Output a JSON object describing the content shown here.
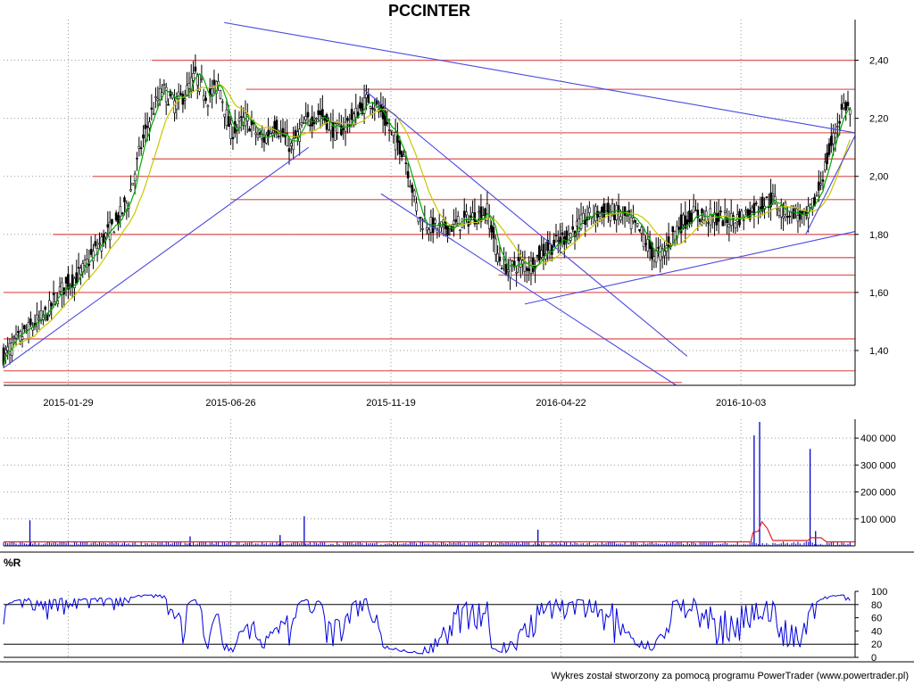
{
  "title": "PCCINTER",
  "footer": "Wykres został stworzony za pomocą programu PowerTrader (www.powertrader.pl)",
  "colors": {
    "background": "#ffffff",
    "candle": "#000000",
    "ma_short": "#00aa00",
    "ma_long": "#c8c800",
    "support_resistance": "#e06060",
    "trendline": "#4a4ae0",
    "volume": "#0000cc",
    "volume_avg": "#e02020",
    "williams_r": "#0000dd"
  },
  "chart_data": [
    {
      "type": "candlestick",
      "name": "price",
      "title": "PCCINTER",
      "x_ticks": [
        "2015-01-29",
        "2015-06-26",
        "2015-11-19",
        "2016-04-22",
        "2016-10-03"
      ],
      "y_ticks": [
        "1,40",
        "1,60",
        "1,80",
        "2,00",
        "2,20",
        "2,40"
      ],
      "ylim": [
        1.28,
        2.54
      ],
      "grid": true,
      "price_path": [
        [
          "2014-12-01",
          1.38
        ],
        [
          "2014-12-10",
          1.42
        ],
        [
          "2014-12-20",
          1.46
        ],
        [
          "2015-01-01",
          1.5
        ],
        [
          "2015-01-10",
          1.53
        ],
        [
          "2015-01-20",
          1.6
        ],
        [
          "2015-01-29",
          1.63
        ],
        [
          "2015-02-10",
          1.67
        ],
        [
          "2015-02-20",
          1.73
        ],
        [
          "2015-03-01",
          1.78
        ],
        [
          "2015-03-15",
          1.85
        ],
        [
          "2015-03-25",
          1.92
        ],
        [
          "2015-04-05",
          2.1
        ],
        [
          "2015-04-15",
          2.22
        ],
        [
          "2015-04-25",
          2.3
        ],
        [
          "2015-05-05",
          2.25
        ],
        [
          "2015-05-15",
          2.28
        ],
        [
          "2015-05-25",
          2.35
        ],
        [
          "2015-06-05",
          2.27
        ],
        [
          "2015-06-15",
          2.32
        ],
        [
          "2015-06-26",
          2.15
        ],
        [
          "2015-07-10",
          2.2
        ],
        [
          "2015-07-25",
          2.12
        ],
        [
          "2015-08-05",
          2.18
        ],
        [
          "2015-08-20",
          2.1
        ],
        [
          "2015-09-01",
          2.18
        ],
        [
          "2015-09-15",
          2.22
        ],
        [
          "2015-09-30",
          2.15
        ],
        [
          "2015-10-15",
          2.2
        ],
        [
          "2015-10-30",
          2.27
        ],
        [
          "2015-11-10",
          2.22
        ],
        [
          "2015-11-19",
          2.15
        ],
        [
          "2015-12-01",
          2.08
        ],
        [
          "2015-12-15",
          1.85
        ],
        [
          "2016-01-01",
          1.82
        ],
        [
          "2016-01-15",
          1.83
        ],
        [
          "2016-02-01",
          1.86
        ],
        [
          "2016-02-15",
          1.88
        ],
        [
          "2016-02-25",
          1.72
        ],
        [
          "2016-03-05",
          1.68
        ],
        [
          "2016-03-15",
          1.7
        ],
        [
          "2016-03-25",
          1.69
        ],
        [
          "2016-04-05",
          1.74
        ],
        [
          "2016-04-22",
          1.78
        ],
        [
          "2016-05-05",
          1.82
        ],
        [
          "2016-05-20",
          1.87
        ],
        [
          "2016-06-05",
          1.88
        ],
        [
          "2016-06-20",
          1.86
        ],
        [
          "2016-07-05",
          1.8
        ],
        [
          "2016-07-15",
          1.73
        ],
        [
          "2016-07-25",
          1.74
        ],
        [
          "2016-08-05",
          1.82
        ],
        [
          "2016-08-20",
          1.87
        ],
        [
          "2016-09-05",
          1.86
        ],
        [
          "2016-09-20",
          1.85
        ],
        [
          "2016-10-03",
          1.86
        ],
        [
          "2016-10-20",
          1.9
        ],
        [
          "2016-11-01",
          1.92
        ],
        [
          "2016-11-10",
          1.88
        ],
        [
          "2016-11-20",
          1.88
        ],
        [
          "2016-12-01",
          1.85
        ],
        [
          "2016-12-10",
          1.92
        ],
        [
          "2016-12-20",
          2.05
        ],
        [
          "2016-12-30",
          2.18
        ],
        [
          "2017-01-05",
          2.25
        ],
        [
          "2017-01-12",
          2.22
        ]
      ],
      "horizontal_levels": [
        {
          "y": 2.4,
          "from": "2015-04-15",
          "to": "2017-01-15"
        },
        {
          "y": 2.3,
          "from": "2015-07-10",
          "to": "2017-01-15"
        },
        {
          "y": 2.15,
          "from": "2015-08-01",
          "to": "2017-01-15"
        },
        {
          "y": 2.06,
          "from": "2015-04-15",
          "to": "2017-01-15"
        },
        {
          "y": 2.0,
          "from": "2015-02-20",
          "to": "2017-01-15"
        },
        {
          "y": 1.92,
          "from": "2015-06-26",
          "to": "2017-01-15"
        },
        {
          "y": 1.8,
          "from": "2015-01-15",
          "to": "2017-01-15"
        },
        {
          "y": 1.72,
          "from": "2016-03-05",
          "to": "2017-01-15"
        },
        {
          "y": 1.66,
          "from": "2016-02-25",
          "to": "2017-01-15"
        },
        {
          "y": 1.6,
          "from": "2014-12-01",
          "to": "2017-01-15"
        },
        {
          "y": 1.44,
          "from": "2014-12-01",
          "to": "2017-01-15"
        },
        {
          "y": 1.33,
          "from": "2014-12-01",
          "to": "2017-01-15"
        },
        {
          "y": 1.29,
          "from": "2014-12-01",
          "to": "2016-08-10"
        }
      ],
      "trendlines": [
        {
          "x1": "2014-12-01",
          "y1": 1.34,
          "x2": "2015-09-05",
          "y2": 2.1
        },
        {
          "x1": "2015-06-20",
          "y1": 2.53,
          "x2": "2017-01-15",
          "y2": 2.15
        },
        {
          "x1": "2015-10-25",
          "y1": 2.3,
          "x2": "2016-08-15",
          "y2": 1.38
        },
        {
          "x1": "2015-11-10",
          "y1": 1.94,
          "x2": "2016-08-05",
          "y2": 1.28
        },
        {
          "x1": "2016-03-20",
          "y1": 1.56,
          "x2": "2017-01-15",
          "y2": 1.81
        },
        {
          "x1": "2016-12-01",
          "y1": 1.8,
          "x2": "2017-01-15",
          "y2": 2.14
        }
      ]
    },
    {
      "type": "bar",
      "name": "volume",
      "y_ticks": [
        "100 000",
        "200 000",
        "300 000",
        "400 000"
      ],
      "ylim": [
        0,
        470000
      ],
      "spikes": [
        [
          "2014-12-25",
          95000
        ],
        [
          "2015-05-20",
          35000
        ],
        [
          "2015-08-10",
          40000
        ],
        [
          "2015-09-01",
          110000
        ],
        [
          "2016-04-01",
          60000
        ],
        [
          "2016-10-15",
          410000
        ],
        [
          "2016-10-20",
          460000
        ],
        [
          "2016-12-05",
          360000
        ],
        [
          "2016-12-10",
          55000
        ]
      ],
      "avg_line": [
        [
          "2014-12-01",
          15000
        ],
        [
          "2016-10-12",
          15000
        ],
        [
          "2016-10-14",
          50000
        ],
        [
          "2016-10-19",
          55000
        ],
        [
          "2016-10-22",
          90000
        ],
        [
          "2016-10-27",
          65000
        ],
        [
          "2016-11-01",
          20000
        ],
        [
          "2016-12-03",
          20000
        ],
        [
          "2016-12-06",
          30000
        ],
        [
          "2016-12-15",
          30000
        ],
        [
          "2016-12-20",
          15000
        ],
        [
          "2017-01-15",
          15000
        ]
      ]
    },
    {
      "type": "line",
      "name": "%R",
      "title": "%R",
      "y_ticks": [
        "0",
        "20",
        "40",
        "60",
        "80",
        "100"
      ],
      "ylim": [
        0,
        100
      ],
      "reference_lines": [
        20,
        80
      ]
    }
  ]
}
